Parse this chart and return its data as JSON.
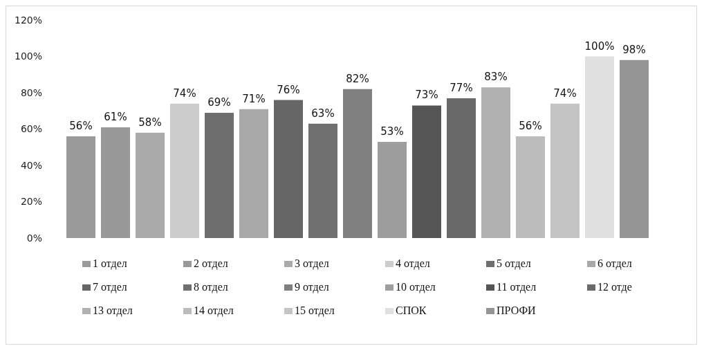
{
  "chart_data": {
    "type": "bar",
    "categories": [
      null
    ],
    "series": [
      {
        "name": "1 отдел",
        "color": "#9a9a9a",
        "values": [
          56
        ],
        "value_labels": [
          "56%"
        ]
      },
      {
        "name": "2 отдел",
        "color": "#999999",
        "values": [
          61
        ],
        "value_labels": [
          "61%"
        ]
      },
      {
        "name": "3 отдел",
        "color": "#aaaaaa",
        "values": [
          58
        ],
        "value_labels": [
          "58%"
        ]
      },
      {
        "name": "4 отдел",
        "color": "#cccccc",
        "values": [
          74
        ],
        "value_labels": [
          "74%"
        ]
      },
      {
        "name": "5 отдел",
        "color": "#6e6e6e",
        "values": [
          69
        ],
        "value_labels": [
          "69%"
        ]
      },
      {
        "name": "6 отдел",
        "color": "#a8a8a8",
        "values": [
          71
        ],
        "value_labels": [
          "71%"
        ]
      },
      {
        "name": "7 отдел",
        "color": "#666666",
        "values": [
          76
        ],
        "value_labels": [
          "76%"
        ]
      },
      {
        "name": "8 отдел",
        "color": "#707070",
        "values": [
          63
        ],
        "value_labels": [
          "63%"
        ]
      },
      {
        "name": "9 отдел",
        "color": "#808080",
        "values": [
          82
        ],
        "value_labels": [
          "82%"
        ]
      },
      {
        "name": "10 отдел",
        "color": "#9e9e9e",
        "values": [
          53
        ],
        "value_labels": [
          "53%"
        ]
      },
      {
        "name": "11 отдел",
        "color": "#555555",
        "values": [
          73
        ],
        "value_labels": [
          "73%"
        ]
      },
      {
        "name": "12 отде",
        "color": "#6a6a6a",
        "values": [
          77
        ],
        "value_labels": [
          "77%"
        ]
      },
      {
        "name": "13 отдел",
        "color": "#b0b0b0",
        "values": [
          83
        ],
        "value_labels": [
          "83%"
        ]
      },
      {
        "name": "14 отдел",
        "color": "#bcbcbc",
        "values": [
          56
        ],
        "value_labels": [
          "56%"
        ]
      },
      {
        "name": "15 отдел",
        "color": "#c4c4c4",
        "values": [
          74
        ],
        "value_labels": [
          "74%"
        ]
      },
      {
        "name": "СПОК",
        "color": "#e0e0e0",
        "values": [
          100
        ],
        "value_labels": [
          "100%"
        ]
      },
      {
        "name": "ПРОФИ",
        "color": "#959595",
        "values": [
          98
        ],
        "value_labels": [
          "98%"
        ]
      }
    ],
    "ylim": [
      0,
      120
    ],
    "yticks": [
      {
        "value": 0,
        "label": "0%"
      },
      {
        "value": 20,
        "label": "20%"
      },
      {
        "value": 40,
        "label": "40%"
      },
      {
        "value": 60,
        "label": "60%"
      },
      {
        "value": 80,
        "label": "80%"
      },
      {
        "value": 100,
        "label": "100%"
      },
      {
        "value": 120,
        "label": "120%"
      }
    ],
    "grid": false,
    "legend": "bottom"
  }
}
